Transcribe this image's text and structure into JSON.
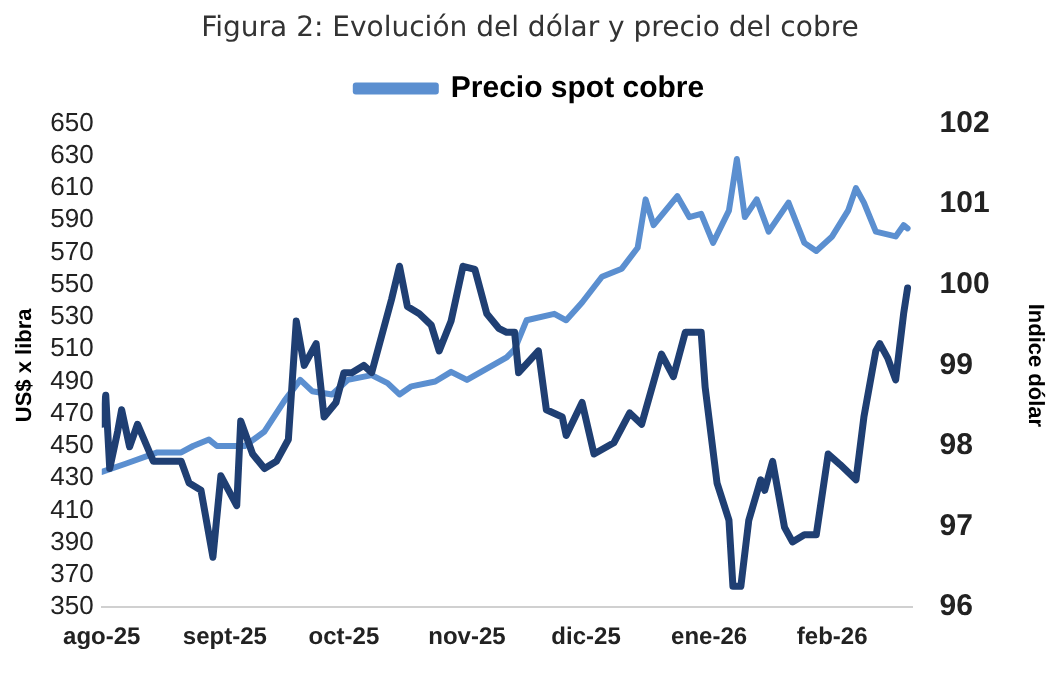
{
  "chart_data": {
    "type": "line",
    "title": "Figura 2: Evolución del dólar y precio del cobre",
    "ylabel": "US$ x libra",
    "y2label": "Indice dólar",
    "xlim": [
      "2025-08-01",
      "2026-02-21"
    ],
    "xticks": [
      {
        "value": "2025-08-01",
        "label": "ago-25"
      },
      {
        "value": "2025-09-01",
        "label": "sept-25"
      },
      {
        "value": "2025-10-01",
        "label": "oct-25"
      },
      {
        "value": "2025-11-01",
        "label": "nov-25"
      },
      {
        "value": "2025-12-01",
        "label": "dic-25"
      },
      {
        "value": "2026-01-01",
        "label": "ene-26"
      },
      {
        "value": "2026-02-01",
        "label": "feb-26"
      }
    ],
    "ylim": [
      350,
      650
    ],
    "yticks": [
      350,
      370,
      390,
      410,
      430,
      450,
      470,
      490,
      510,
      530,
      550,
      570,
      590,
      610,
      630,
      650
    ],
    "y2lim": [
      96,
      102
    ],
    "y2ticks": [
      96,
      97,
      98,
      99,
      100,
      101,
      102
    ],
    "grid": false,
    "legend": "top",
    "marker": "none",
    "line_style": "solid",
    "series": [
      {
        "name": "Precio spot cobre",
        "color": "#5b8fd0",
        "x": [
          "2025-08-01",
          "2025-08-07",
          "2025-08-15",
          "2025-08-21",
          "2025-08-24",
          "2025-08-28",
          "2025-08-30",
          "2025-09-06",
          "2025-09-11",
          "2025-09-16",
          "2025-09-20",
          "2025-09-23",
          "2025-09-28",
          "2025-10-02",
          "2025-10-08",
          "2025-10-12",
          "2025-10-15",
          "2025-10-18",
          "2025-10-24",
          "2025-10-28",
          "2025-11-01",
          "2025-11-06",
          "2025-11-11",
          "2025-11-13",
          "2025-11-16",
          "2025-11-23",
          "2025-11-26",
          "2025-11-30",
          "2025-12-05",
          "2025-12-10",
          "2025-12-14",
          "2025-12-16",
          "2025-12-18",
          "2025-12-24",
          "2025-12-27",
          "2025-12-30",
          "2026-01-02",
          "2026-01-06",
          "2026-01-08",
          "2026-01-10",
          "2026-01-13",
          "2026-01-16",
          "2026-01-21",
          "2026-01-25",
          "2026-01-28",
          "2026-02-01",
          "2026-02-05",
          "2026-02-07",
          "2026-02-09",
          "2026-02-12",
          "2026-02-17",
          "2026-02-19",
          "2026-02-20"
        ],
        "values": [
          434,
          439,
          446,
          446,
          450,
          454,
          450,
          450,
          459,
          478,
          491,
          484,
          482,
          491,
          494,
          489,
          482,
          487,
          490,
          496,
          491,
          498,
          505,
          510,
          528,
          532,
          528,
          539,
          555,
          560,
          573,
          603,
          587,
          605,
          592,
          594,
          576,
          596,
          628,
          592,
          603,
          583,
          601,
          576,
          571,
          580,
          596,
          610,
          601,
          583,
          580,
          587,
          585
        ]
      },
      {
        "color": "#1f3f73",
        "axis": "y2",
        "x": [
          "2025-08-01",
          "2025-08-02",
          "2025-08-03",
          "2025-08-05",
          "2025-08-06",
          "2025-08-08",
          "2025-08-10",
          "2025-08-14",
          "2025-08-17",
          "2025-08-21",
          "2025-08-23",
          "2025-08-26",
          "2025-08-29",
          "2025-08-31",
          "2025-09-04",
          "2025-09-05",
          "2025-09-08",
          "2025-09-11",
          "2025-09-14",
          "2025-09-17",
          "2025-09-19",
          "2025-09-21",
          "2025-09-24",
          "2025-09-26",
          "2025-09-29",
          "2025-10-01",
          "2025-10-03",
          "2025-10-06",
          "2025-10-08",
          "2025-10-13",
          "2025-10-15",
          "2025-10-17",
          "2025-10-20",
          "2025-10-23",
          "2025-10-25",
          "2025-10-28",
          "2025-10-31",
          "2025-11-03",
          "2025-11-06",
          "2025-11-09",
          "2025-11-11",
          "2025-11-13",
          "2025-11-14",
          "2025-11-19",
          "2025-11-21",
          "2025-11-25",
          "2025-11-26",
          "2025-11-30",
          "2025-12-03",
          "2025-12-08",
          "2025-12-12",
          "2025-12-15",
          "2025-12-20",
          "2025-12-23",
          "2025-12-26",
          "2025-12-30",
          "2025-12-31",
          "2026-01-03",
          "2026-01-06",
          "2026-01-07",
          "2026-01-09",
          "2026-01-11",
          "2026-01-14",
          "2026-01-15",
          "2026-01-17",
          "2026-01-20",
          "2026-01-22",
          "2026-01-25",
          "2026-01-28",
          "2026-01-31",
          "2026-02-03",
          "2026-02-07",
          "2026-02-09",
          "2026-02-12",
          "2026-02-13",
          "2026-02-15",
          "2026-02-17",
          "2026-02-19",
          "2026-02-20"
        ],
        "values": [
          98.27,
          98.63,
          97.72,
          98.18,
          98.45,
          97.99,
          98.27,
          97.81,
          97.81,
          97.81,
          97.54,
          97.45,
          96.62,
          97.63,
          97.26,
          98.31,
          97.9,
          97.72,
          97.81,
          98.08,
          99.55,
          99.0,
          99.27,
          98.36,
          98.54,
          98.91,
          98.91,
          99.0,
          98.91,
          99.82,
          100.23,
          99.73,
          99.64,
          99.5,
          99.18,
          99.55,
          100.23,
          100.19,
          99.64,
          99.46,
          99.41,
          99.41,
          98.91,
          99.18,
          98.45,
          98.36,
          98.13,
          98.54,
          97.9,
          98.04,
          98.41,
          98.27,
          99.14,
          98.86,
          99.41,
          99.41,
          98.73,
          97.54,
          97.08,
          96.26,
          96.26,
          97.08,
          97.58,
          97.45,
          97.81,
          96.99,
          96.81,
          96.9,
          96.9,
          97.9,
          97.77,
          97.58,
          98.36,
          99.18,
          99.27,
          99.09,
          98.82,
          99.64,
          99.96
        ]
      }
    ]
  }
}
